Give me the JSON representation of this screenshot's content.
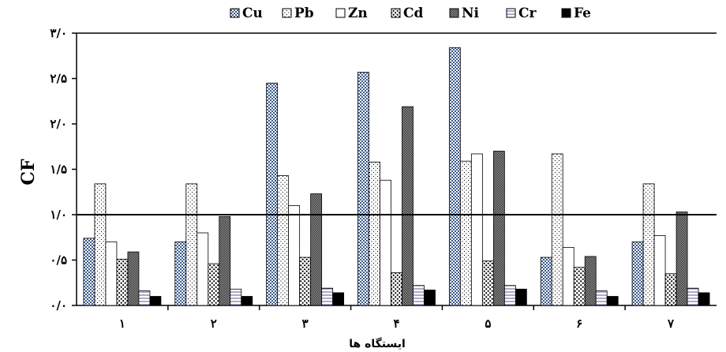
{
  "chart_data": {
    "type": "bar",
    "title": "",
    "xlabel": "ایستگاه ها",
    "ylabel": "CF",
    "ylim": [
      0,
      3.0
    ],
    "y_ticks": [
      {
        "value": 0.0,
        "label": "۰/۰"
      },
      {
        "value": 0.5,
        "label": "۰/۵"
      },
      {
        "value": 1.0,
        "label": "۱/۰"
      },
      {
        "value": 1.5,
        "label": "۱/۵"
      },
      {
        "value": 2.0,
        "label": "۲/۰"
      },
      {
        "value": 2.5,
        "label": "۲/۵"
      },
      {
        "value": 3.0,
        "label": "۳/۰"
      }
    ],
    "reference_line": 1.0,
    "legend_position": "top",
    "categories": [
      "۱",
      "۲",
      "۳",
      "۴",
      "۵",
      "۶",
      "۷"
    ],
    "series": [
      {
        "name": "Cu",
        "pattern": "checker",
        "values": [
          0.74,
          0.7,
          2.45,
          2.57,
          2.84,
          0.53,
          0.7
        ]
      },
      {
        "name": "Pb",
        "pattern": "dots",
        "values": [
          1.34,
          1.34,
          1.43,
          1.58,
          1.59,
          1.67,
          1.34
        ]
      },
      {
        "name": "Zn",
        "pattern": "white",
        "values": [
          0.7,
          0.8,
          1.1,
          1.38,
          1.67,
          0.64,
          0.77
        ]
      },
      {
        "name": "Cd",
        "pattern": "bigdots",
        "values": [
          0.51,
          0.46,
          0.53,
          0.36,
          0.49,
          0.42,
          0.35
        ]
      },
      {
        "name": "Ni",
        "pattern": "darkcross",
        "values": [
          0.59,
          0.98,
          1.23,
          2.19,
          1.7,
          0.54,
          1.03
        ]
      },
      {
        "name": "Cr",
        "pattern": "hlines",
        "values": [
          0.16,
          0.18,
          0.19,
          0.22,
          0.22,
          0.16,
          0.19
        ]
      },
      {
        "name": "Fe",
        "pattern": "solid",
        "values": [
          0.1,
          0.1,
          0.14,
          0.17,
          0.18,
          0.1,
          0.14
        ]
      }
    ]
  }
}
